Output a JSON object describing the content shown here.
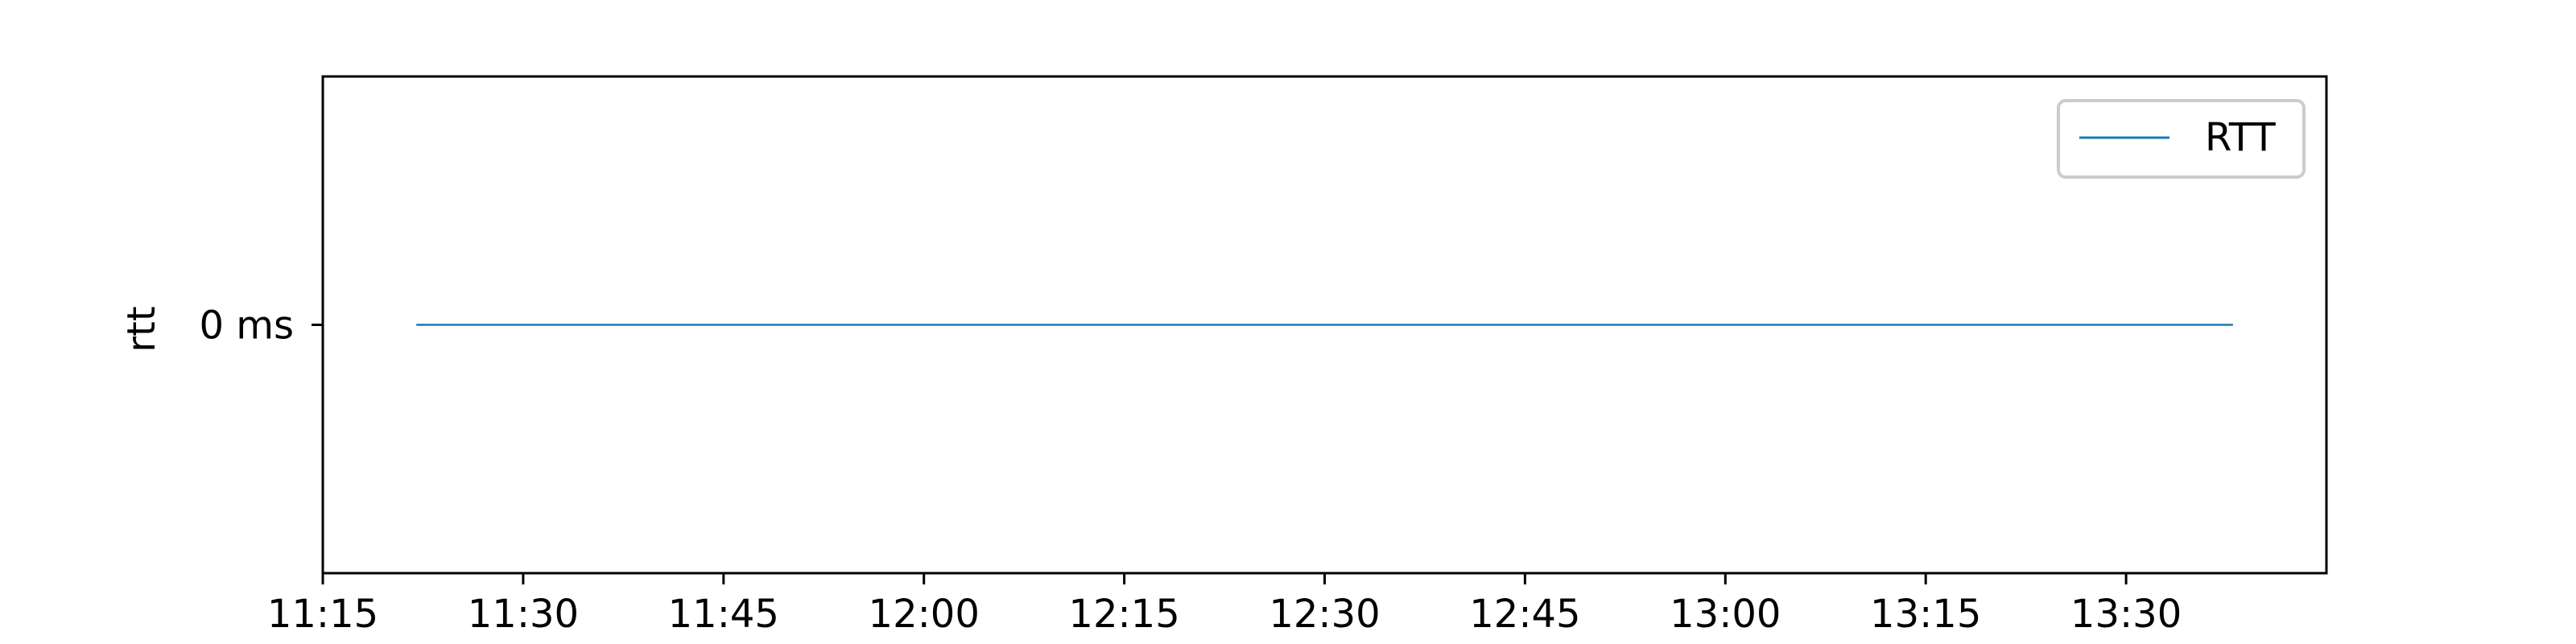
{
  "chart_data": {
    "type": "line",
    "title": "",
    "xlabel": "",
    "ylabel": "rtt",
    "x_ticks": [
      "11:15",
      "11:30",
      "11:45",
      "12:00",
      "12:15",
      "12:30",
      "12:45",
      "13:00",
      "13:15",
      "13:30"
    ],
    "y_ticks": [
      "0 ms"
    ],
    "xlim": [
      "11:15",
      "13:45"
    ],
    "ylim": [
      -0.055,
      0.055
    ],
    "grid": false,
    "legend_position": "top-right",
    "series": [
      {
        "name": "RTT",
        "color": "#1f77b4",
        "x": [
          "11:22",
          "13:38"
        ],
        "y": [
          0,
          0
        ]
      }
    ]
  }
}
